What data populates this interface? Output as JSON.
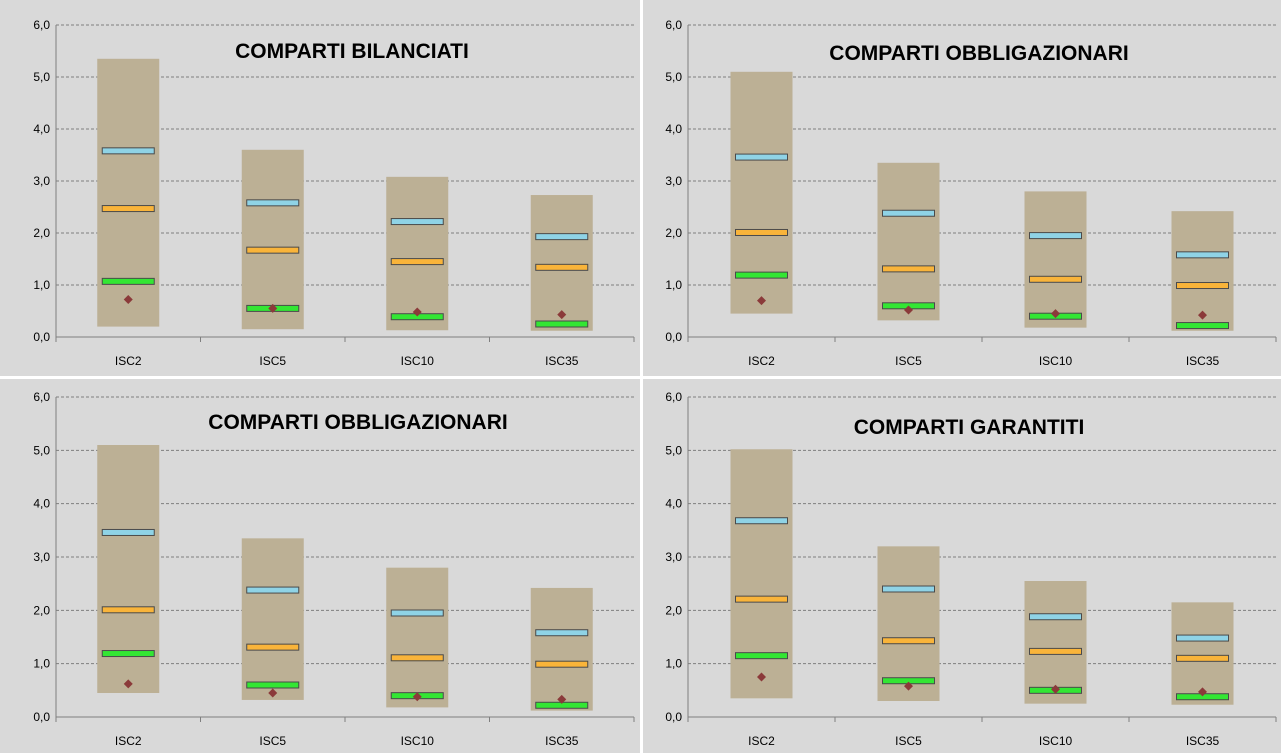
{
  "colors": {
    "panel_bg": "#d9d9d9",
    "range_bar": "#bcb095",
    "q3_marker": "#8fd3e6",
    "median_marker": "#f9b43a",
    "q1_marker": "#33e633",
    "point_marker": "#8b3a3a",
    "marker_border": "#4a4a4a"
  },
  "chart_data": [
    {
      "type": "bar",
      "title": "COMPARTI BILANCIATI",
      "ylim": [
        0,
        6
      ],
      "yticks": [
        "0,0",
        "1,0",
        "2,0",
        "3,0",
        "4,0",
        "5,0",
        "6,0"
      ],
      "grid": true,
      "categories": [
        "ISC2",
        "ISC5",
        "ISC10",
        "ISC35"
      ],
      "series": [
        {
          "role": "range_min",
          "values": [
            0.2,
            0.15,
            0.13,
            0.12
          ]
        },
        {
          "role": "range_max",
          "values": [
            5.35,
            3.6,
            3.08,
            2.73
          ]
        },
        {
          "role": "q3",
          "values": [
            3.58,
            2.58,
            2.22,
            1.93
          ]
        },
        {
          "role": "median",
          "values": [
            2.47,
            1.67,
            1.45,
            1.34
          ]
        },
        {
          "role": "q1",
          "values": [
            1.07,
            0.55,
            0.39,
            0.25
          ]
        },
        {
          "role": "point",
          "values": [
            0.72,
            0.55,
            0.48,
            0.43
          ]
        }
      ]
    },
    {
      "type": "bar",
      "title": "COMPARTI OBBLIGAZIONARI",
      "ylim": [
        0,
        6
      ],
      "yticks": [
        "0,0",
        "1,0",
        "2,0",
        "3,0",
        "4,0",
        "5,0",
        "6,0"
      ],
      "grid": true,
      "categories": [
        "ISC2",
        "ISC5",
        "ISC10",
        "ISC35"
      ],
      "series": [
        {
          "role": "range_min",
          "values": [
            0.45,
            0.32,
            0.18,
            0.12
          ]
        },
        {
          "role": "range_max",
          "values": [
            5.1,
            3.35,
            2.8,
            2.42
          ]
        },
        {
          "role": "q3",
          "values": [
            3.46,
            2.38,
            1.95,
            1.58
          ]
        },
        {
          "role": "median",
          "values": [
            2.01,
            1.31,
            1.11,
            0.99
          ]
        },
        {
          "role": "q1",
          "values": [
            1.19,
            0.6,
            0.4,
            0.22
          ]
        },
        {
          "role": "point",
          "values": [
            0.7,
            0.52,
            0.45,
            0.42
          ]
        }
      ]
    },
    {
      "type": "bar",
      "title": "COMPARTI OBBLIGAZIONARI",
      "ylim": [
        0,
        6
      ],
      "yticks": [
        "0,0",
        "1,0",
        "2,0",
        "3,0",
        "4,0",
        "5,0",
        "6,0"
      ],
      "grid": true,
      "categories": [
        "ISC2",
        "ISC5",
        "ISC10",
        "ISC35"
      ],
      "series": [
        {
          "role": "range_min",
          "values": [
            0.45,
            0.32,
            0.18,
            0.12
          ]
        },
        {
          "role": "range_max",
          "values": [
            5.1,
            3.35,
            2.8,
            2.42
          ]
        },
        {
          "role": "q3",
          "values": [
            3.46,
            2.38,
            1.95,
            1.58
          ]
        },
        {
          "role": "median",
          "values": [
            2.01,
            1.31,
            1.11,
            0.99
          ]
        },
        {
          "role": "q1",
          "values": [
            1.19,
            0.6,
            0.4,
            0.22
          ]
        },
        {
          "role": "point",
          "values": [
            0.62,
            0.45,
            0.38,
            0.33
          ]
        }
      ]
    },
    {
      "type": "bar",
      "title": "COMPARTI GARANTITI",
      "ylim": [
        0,
        6
      ],
      "yticks": [
        "0,0",
        "1,0",
        "2,0",
        "3,0",
        "4,0",
        "5,0",
        "6,0"
      ],
      "grid": true,
      "categories": [
        "ISC2",
        "ISC5",
        "ISC10",
        "ISC35"
      ],
      "series": [
        {
          "role": "range_min",
          "values": [
            0.35,
            0.3,
            0.25,
            0.23
          ]
        },
        {
          "role": "range_max",
          "values": [
            5.02,
            3.2,
            2.55,
            2.15
          ]
        },
        {
          "role": "q3",
          "values": [
            3.68,
            2.4,
            1.88,
            1.48
          ]
        },
        {
          "role": "median",
          "values": [
            2.21,
            1.43,
            1.23,
            1.1
          ]
        },
        {
          "role": "q1",
          "values": [
            1.15,
            0.68,
            0.5,
            0.38
          ]
        },
        {
          "role": "point",
          "values": [
            0.75,
            0.58,
            0.52,
            0.47
          ]
        }
      ]
    }
  ]
}
